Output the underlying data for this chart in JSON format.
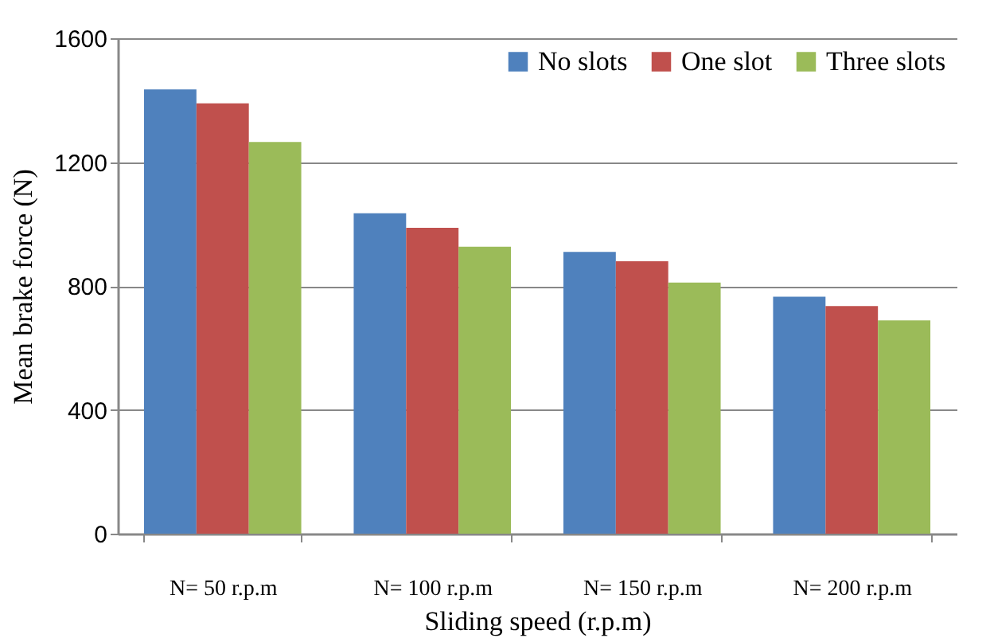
{
  "chart_data": {
    "type": "bar",
    "xlabel": "Sliding speed (r.p.m)",
    "ylabel": "Mean brake force (N)",
    "categories": [
      "N= 50 r.p.m",
      "N= 100 r.p.m",
      "N= 150 r.p.m",
      "N= 200 r.p.m"
    ],
    "series": [
      {
        "name": "No slots",
        "color": "#4f81bd",
        "values": [
          1435,
          1035,
          910,
          765
        ]
      },
      {
        "name": "One slot",
        "color": "#c0504d",
        "values": [
          1390,
          988,
          880,
          735
        ]
      },
      {
        "name": "Three slots",
        "color": "#9bbb59",
        "values": [
          1265,
          927,
          811,
          689
        ]
      }
    ],
    "ylim": [
      0,
      1600
    ],
    "yticks": [
      0,
      400,
      800,
      1200,
      1600
    ],
    "grid": "y",
    "legend": "top right"
  }
}
